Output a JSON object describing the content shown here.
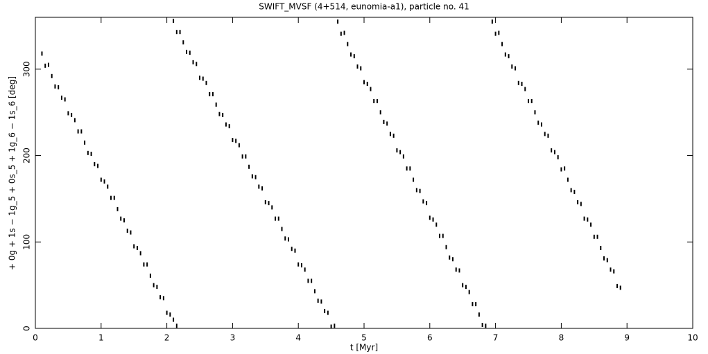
{
  "chart_data": {
    "type": "scatter",
    "title": "SWIFT_MVSF (4+514, eunomia-a1), particle no. 41",
    "x_label": "t [Myr]",
    "y_label": "+ 0g + 1s − 1g_5 + 0s_5 + 1g_6 − 1s_6 [deg]",
    "color": "#000000",
    "xlim": [
      0,
      10
    ],
    "xticks": [
      0,
      1,
      2,
      3,
      4,
      5,
      6,
      7,
      8,
      9,
      10
    ],
    "ylim": [
      0,
      360
    ],
    "yticks": [
      0,
      100,
      200,
      300
    ],
    "x": [
      0.1,
      0.15,
      0.2,
      0.25,
      0.3,
      0.35,
      0.4,
      0.45,
      0.5,
      0.55,
      0.6,
      0.65,
      0.7,
      0.75,
      0.8,
      0.85,
      0.9,
      0.95,
      1.0,
      1.05,
      1.1,
      1.15,
      1.2,
      1.25,
      1.3,
      1.35,
      1.4,
      1.45,
      1.5,
      1.55,
      1.6,
      1.65,
      1.7,
      1.75,
      1.8,
      1.85,
      1.9,
      1.95,
      2.0,
      2.05,
      2.1,
      2.15,
      2.1,
      2.15,
      2.2,
      2.25,
      2.3,
      2.35,
      2.4,
      2.45,
      2.5,
      2.55,
      2.6,
      2.65,
      2.7,
      2.75,
      2.8,
      2.85,
      2.9,
      2.95,
      3.0,
      3.05,
      3.1,
      3.15,
      3.2,
      3.25,
      3.3,
      3.35,
      3.4,
      3.45,
      3.5,
      3.55,
      3.6,
      3.65,
      3.7,
      3.75,
      3.8,
      3.85,
      3.9,
      3.95,
      4.0,
      4.05,
      4.1,
      4.15,
      4.2,
      4.25,
      4.3,
      4.35,
      4.4,
      4.45,
      4.5,
      4.55,
      4.6,
      4.65,
      4.7,
      4.75,
      4.8,
      4.85,
      4.9,
      4.95,
      5.0,
      5.05,
      5.1,
      5.15,
      5.2,
      5.25,
      5.3,
      5.35,
      5.4,
      5.45,
      5.5,
      5.55,
      5.6,
      5.65,
      5.7,
      5.75,
      5.8,
      5.85,
      5.9,
      5.95,
      6.0,
      6.05,
      6.1,
      6.15,
      6.2,
      6.25,
      6.3,
      6.35,
      6.4,
      6.45,
      6.5,
      6.55,
      6.6,
      6.65,
      6.7,
      6.75,
      6.8,
      6.85,
      6.95,
      7.0,
      7.05,
      7.1,
      7.15,
      7.2,
      7.25,
      7.3,
      7.35,
      7.4,
      7.45,
      7.5,
      7.55,
      7.6,
      7.65,
      7.7,
      7.75,
      7.8,
      7.85,
      7.9,
      7.95,
      8.0,
      8.05,
      8.1,
      8.15,
      8.2,
      8.25,
      8.3,
      8.35,
      8.4,
      8.45,
      8.5,
      8.55,
      8.6,
      8.65,
      8.7,
      8.75,
      8.8,
      8.85,
      8.9
    ],
    "values": [
      318,
      304,
      305,
      292,
      280,
      279,
      267,
      265,
      249,
      247,
      241,
      228,
      228,
      215,
      203,
      202,
      190,
      188,
      172,
      170,
      164,
      151,
      151,
      138,
      127,
      125,
      113,
      111,
      95,
      93,
      87,
      74,
      74,
      61,
      50,
      48,
      36,
      35,
      18,
      16,
      10,
      3,
      356,
      343,
      343,
      331,
      320,
      319,
      308,
      306,
      290,
      289,
      284,
      271,
      271,
      259,
      248,
      247,
      236,
      234,
      218,
      217,
      212,
      199,
      199,
      187,
      176,
      175,
      164,
      162,
      146,
      145,
      140,
      127,
      127,
      115,
      104,
      103,
      92,
      90,
      74,
      73,
      68,
      55,
      55,
      43,
      32,
      31,
      20,
      18,
      2,
      3,
      355,
      341,
      342,
      329,
      317,
      315,
      303,
      301,
      285,
      283,
      277,
      263,
      263,
      250,
      239,
      237,
      225,
      223,
      206,
      204,
      199,
      185,
      185,
      172,
      160,
      159,
      147,
      145,
      128,
      126,
      120,
      107,
      107,
      94,
      82,
      80,
      68,
      67,
      50,
      48,
      42,
      28,
      28,
      16,
      4,
      3,
      355,
      341,
      342,
      329,
      317,
      315,
      303,
      301,
      284,
      283,
      277,
      263,
      263,
      250,
      238,
      236,
      225,
      223,
      206,
      204,
      198,
      184,
      185,
      172,
      160,
      158,
      146,
      144,
      127,
      126,
      120,
      106,
      106,
      93,
      81,
      79,
      68,
      66,
      49,
      47
    ]
  }
}
